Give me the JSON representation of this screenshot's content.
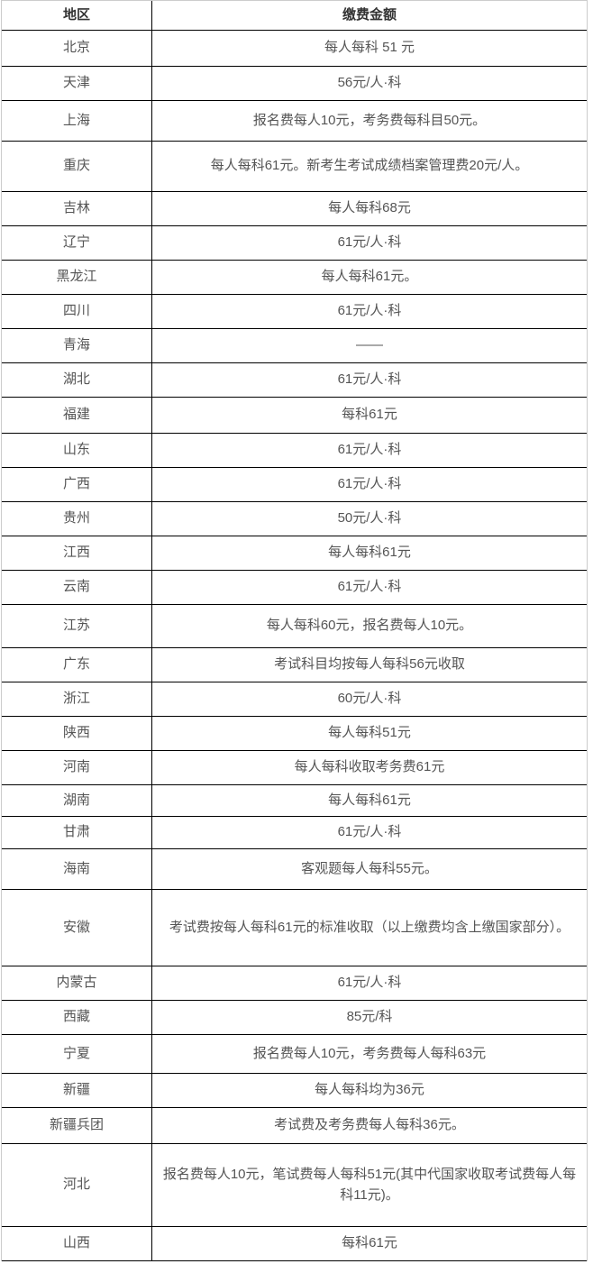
{
  "table": {
    "headers": {
      "region": "地区",
      "fee": "缴费金额"
    },
    "rows": [
      {
        "region": "北京",
        "fee": "每人每科 51 元"
      },
      {
        "region": "天津",
        "fee": "56元/人·科"
      },
      {
        "region": "上海",
        "fee": "报名费每人10元，考务费每科目50元。"
      },
      {
        "region": "重庆",
        "fee": "每人每科61元。新考生考试成绩档案管理费20元/人。"
      },
      {
        "region": "吉林",
        "fee": "每人每科68元"
      },
      {
        "region": "辽宁",
        "fee": "61元/人·科"
      },
      {
        "region": "黑龙江",
        "fee": "每人每科61元。"
      },
      {
        "region": "四川",
        "fee": "61元/人·科"
      },
      {
        "region": "青海",
        "fee": "——"
      },
      {
        "region": "湖北",
        "fee": "61元/人·科"
      },
      {
        "region": "福建",
        "fee": "每科61元"
      },
      {
        "region": "山东",
        "fee": "61元/人·科"
      },
      {
        "region": "广西",
        "fee": "61元/人·科"
      },
      {
        "region": "贵州",
        "fee": "50元/人·科"
      },
      {
        "region": "江西",
        "fee": "每人每科61元"
      },
      {
        "region": "云南",
        "fee": "61元/人·科"
      },
      {
        "region": "江苏",
        "fee": "每人每科60元，报名费每人10元。"
      },
      {
        "region": "广东",
        "fee": "考试科目均按每人每科56元收取"
      },
      {
        "region": "浙江",
        "fee": "60元/人·科"
      },
      {
        "region": "陕西",
        "fee": "每人每科51元"
      },
      {
        "region": "河南",
        "fee": "每人每科收取考务费61元"
      },
      {
        "region": "湖南",
        "fee": "每人每科61元"
      },
      {
        "region": "甘肃",
        "fee": "61元/人·科"
      },
      {
        "region": "海南",
        "fee": "客观题每人每科55元。"
      },
      {
        "region": "安徽",
        "fee": "考试费按每人每科61元的标准收取（以上缴费均含上缴国家部分）。"
      },
      {
        "region": "内蒙古",
        "fee": "61元/人·科"
      },
      {
        "region": "西藏",
        "fee": "85元/科"
      },
      {
        "region": "宁夏",
        "fee": "报名费每人10元，考务费每人每科63元"
      },
      {
        "region": "新疆",
        "fee": "每人每科均为36元"
      },
      {
        "region": "新疆兵团",
        "fee": "考试费及考务费每人每科36元。"
      },
      {
        "region": "河北",
        "fee": "报名费每人10元，笔试费每人每科51元(其中代国家收取考试费每人每科11元)。"
      },
      {
        "region": "山西",
        "fee": "每科61元"
      }
    ]
  },
  "colors": {
    "background": "#ffffff",
    "border_outer": "#cccccc",
    "border_inner": "#000000",
    "header_text": "#333333",
    "body_text": "#555555"
  }
}
